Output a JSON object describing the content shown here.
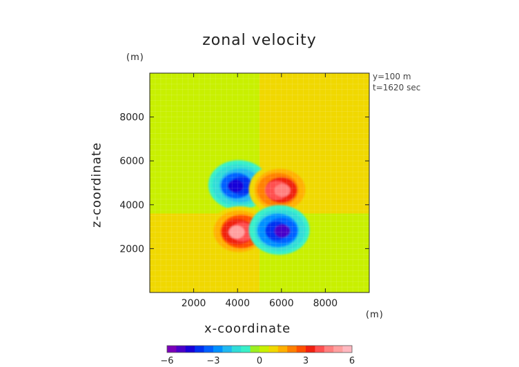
{
  "chart_data": {
    "type": "heatmap",
    "title": "zonal velocity",
    "xlabel": "x-coordinate",
    "ylabel": "z-coordinate",
    "x_unit": "(m)",
    "y_unit": "(m)",
    "annotations": [
      "y=100 m",
      "t=1620 sec"
    ],
    "xlim": [
      0,
      10000
    ],
    "ylim": [
      0,
      10000
    ],
    "x_ticks": [
      2000,
      4000,
      6000,
      8000
    ],
    "y_ticks": [
      2000,
      4000,
      6000,
      8000
    ],
    "x_tick_labels": [
      "2000",
      "4000",
      "6000",
      "8000"
    ],
    "y_tick_labels": [
      "2000",
      "4000",
      "6000",
      "8000"
    ],
    "colorbar": {
      "range": [
        -6,
        6
      ],
      "tick_values": [
        -6,
        -3,
        0,
        3,
        6
      ],
      "tick_labels": [
        "−6",
        "−3",
        "0",
        "3",
        "6"
      ],
      "colors": [
        "#7a00b8",
        "#4a00c8",
        "#1800d8",
        "#0030f0",
        "#0060ff",
        "#0090ff",
        "#20b8f0",
        "#30dcd8",
        "#38f0c8",
        "#9cf020",
        "#c8f000",
        "#f0d800",
        "#ffb000",
        "#ff8000",
        "#ff5000",
        "#f02010",
        "#ff5050",
        "#ff8080",
        "#ffa0a0",
        "#ffb8c0"
      ]
    },
    "background": {
      "upper_left": 0,
      "upper_right": 1,
      "lower_left": 1,
      "lower_right": 0,
      "split_x": 5000,
      "split_z": 3600
    },
    "features": [
      {
        "name": "upper-left lobe",
        "x": 4050,
        "z": 4900,
        "peak": -4.5
      },
      {
        "name": "upper-right lobe",
        "x": 5900,
        "z": 4700,
        "peak": 4.5
      },
      {
        "name": "lower-left lobe",
        "x": 4100,
        "z": 2800,
        "peak": 4.8
      },
      {
        "name": "lower-right lobe",
        "x": 5900,
        "z": 2850,
        "peak": -5.0
      }
    ]
  }
}
